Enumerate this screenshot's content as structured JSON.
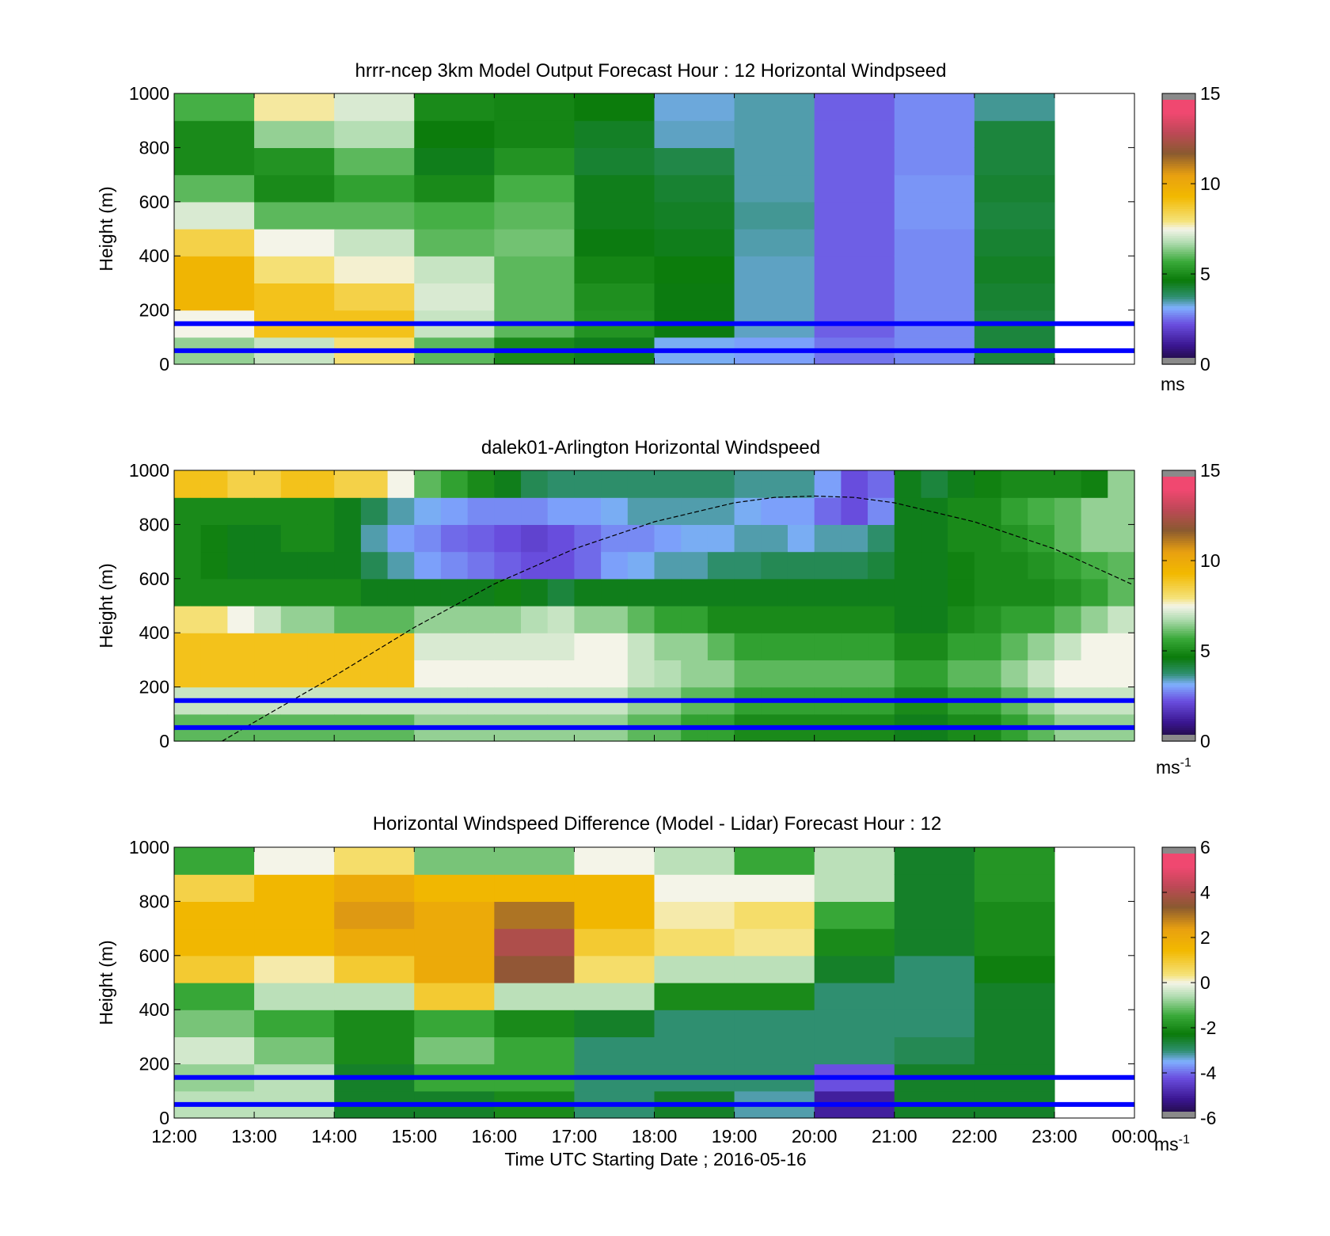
{
  "chart_data": [
    {
      "type": "heatmap",
      "title": "hrrr-ncep 3km Model Output   Forecast Hour : 12 Horizontal Windpseed",
      "xlabel": "",
      "ylabel": "Height (m)",
      "xlim": [
        "12:00",
        "00:00"
      ],
      "ylim": [
        0,
        1000
      ],
      "y_ticks": [
        "0",
        "200",
        "400",
        "600",
        "800",
        "1000"
      ],
      "x_ticks": [],
      "colorbar": {
        "range": [
          0,
          15
        ],
        "ticks": [
          "0",
          "5",
          "10",
          "15"
        ],
        "unit": "ms",
        "unit_sup": "",
        "scale": "speed"
      },
      "columns": [
        "12:00",
        "13:00",
        "14:00",
        "15:00",
        "16:00",
        "17:00",
        "18:00",
        "19:00",
        "20:00",
        "21:00",
        "22:00"
      ],
      "values_at_heights_m": [
        50,
        150,
        250,
        350,
        450,
        550,
        650,
        750,
        850,
        950
      ],
      "values": [
        [
          6.5,
          7.5,
          9.5,
          9.5,
          8.5,
          7.2,
          6,
          5,
          5,
          5.8
        ],
        [
          7,
          9,
          9,
          8,
          7.5,
          6,
          5,
          5.2,
          6.5,
          7.8
        ],
        [
          8,
          9,
          8.5,
          7.6,
          7,
          6,
          5.5,
          6,
          6.8,
          7.2
        ],
        [
          6,
          7,
          7.2,
          7,
          6,
          5.8,
          5,
          4.5,
          4.7,
          5
        ],
        [
          5,
          6,
          6,
          6,
          6.2,
          6,
          5.8,
          5.2,
          4.9,
          4.9
        ],
        [
          4.5,
          5.2,
          5.1,
          4.9,
          4.6,
          4.5,
          4.5,
          4.3,
          4.4,
          4.7
        ],
        [
          3.2,
          4.6,
          4.6,
          4.7,
          4.5,
          4.4,
          4.3,
          4.1,
          3.4,
          3.3
        ],
        [
          3,
          3.4,
          3.4,
          3.4,
          3.5,
          3.6,
          3.5,
          3.5,
          3.5,
          3.5
        ],
        [
          2.6,
          2.4,
          2.4,
          2.4,
          2.4,
          2.4,
          2.4,
          2.4,
          2.4,
          2.4
        ],
        [
          2.8,
          2.8,
          2.8,
          2.8,
          2.8,
          2.9,
          2.9,
          2.8,
          2.8,
          2.8
        ],
        [
          4.2,
          4.2,
          4.3,
          4.4,
          4.3,
          4.2,
          4.3,
          4.2,
          4.2,
          3.6
        ]
      ],
      "reference_lines_m": [
        50,
        150
      ],
      "line_color": "#0000ff"
    },
    {
      "type": "heatmap",
      "title": "dalek01-Arlington  Horizontal Windspeed",
      "xlabel": "",
      "ylabel": "Height (m)",
      "xlim": [
        "12:00",
        "00:00"
      ],
      "ylim": [
        0,
        1000
      ],
      "y_ticks": [
        "0",
        "200",
        "400",
        "600",
        "800",
        "1000"
      ],
      "x_ticks": [],
      "colorbar": {
        "range": [
          0,
          15
        ],
        "ticks": [
          "0",
          "5",
          "10",
          "15"
        ],
        "unit": "ms",
        "unit_sup": "-1",
        "scale": "speed"
      },
      "columns": [
        "12:00",
        "12:20",
        "12:40",
        "13:00",
        "13:20",
        "13:40",
        "14:00",
        "14:20",
        "14:40",
        "15:00",
        "15:20",
        "15:40",
        "16:00",
        "16:20",
        "16:40",
        "17:00",
        "17:20",
        "17:40",
        "18:00",
        "18:20",
        "18:40",
        "19:00",
        "19:20",
        "19:40",
        "20:00",
        "20:20",
        "20:40",
        "21:00",
        "21:20",
        "21:40",
        "22:00",
        "22:20",
        "22:40",
        "23:00",
        "23:20",
        "23:40"
      ],
      "values_at_heights_m": [
        50,
        150,
        250,
        350,
        450,
        550,
        650,
        750,
        850,
        950
      ],
      "values": [
        [
          6,
          7,
          9,
          9,
          8,
          5,
          5,
          5,
          5,
          9
        ],
        [
          6,
          7,
          9,
          9,
          8,
          5,
          4.8,
          4.8,
          5,
          9
        ],
        [
          6,
          7,
          9,
          9,
          7.5,
          5,
          4.5,
          4.5,
          5,
          8.5
        ],
        [
          6,
          7,
          9,
          9,
          7,
          5,
          4.5,
          4.5,
          5,
          8.5
        ],
        [
          6,
          7,
          9,
          9,
          6.5,
          5,
          4.5,
          5,
          5,
          9
        ],
        [
          6,
          7,
          9,
          9,
          6.5,
          5,
          4.5,
          5,
          5,
          9
        ],
        [
          6,
          7,
          9,
          9,
          6,
          5,
          4.5,
          4.5,
          4.5,
          8.5
        ],
        [
          6,
          7,
          9,
          9,
          6,
          4.5,
          4,
          3.5,
          4,
          8.5
        ],
        [
          6,
          7,
          9,
          9,
          6,
          4.5,
          3.5,
          3,
          3.5,
          7.5
        ],
        [
          6.5,
          7,
          7.5,
          7.2,
          6.5,
          4.5,
          3,
          2.8,
          3.2,
          6
        ],
        [
          6.5,
          7,
          7.5,
          7.2,
          6.5,
          4.5,
          2.8,
          2.5,
          3,
          5.5
        ],
        [
          6.5,
          7,
          7.5,
          7.2,
          6.5,
          4.5,
          2.6,
          2.4,
          2.8,
          5
        ],
        [
          6.5,
          7,
          7.5,
          7.2,
          6.5,
          4.8,
          2.4,
          2.2,
          2.8,
          4.5
        ],
        [
          6.5,
          7,
          7.5,
          7.2,
          6.8,
          4.5,
          2.2,
          2,
          2.8,
          4
        ],
        [
          6.5,
          7,
          7.5,
          7.2,
          7,
          4.2,
          2.2,
          2.2,
          3,
          3.8
        ],
        [
          6.5,
          7,
          7.5,
          7.5,
          6.5,
          4.5,
          2.5,
          2.5,
          3,
          3.8
        ],
        [
          6.5,
          7,
          7.5,
          7.5,
          6.5,
          4.5,
          3,
          2.8,
          3.2,
          3.8
        ],
        [
          6,
          6.5,
          7,
          7,
          6,
          4.5,
          3.2,
          2.8,
          3.5,
          3.8
        ],
        [
          6,
          6.5,
          6.8,
          6.5,
          5.5,
          4.5,
          3.5,
          3,
          3.5,
          3.8
        ],
        [
          5.5,
          6,
          6.5,
          6.5,
          5.5,
          4.5,
          3.5,
          3.2,
          3.5,
          3.8
        ],
        [
          5.5,
          6,
          6.5,
          6,
          5,
          4.5,
          3.8,
          3.2,
          3.5,
          3.8
        ],
        [
          5,
          5.5,
          6,
          5.5,
          5,
          4.5,
          3.8,
          3.5,
          3.2,
          3.6
        ],
        [
          5,
          5.5,
          6,
          5.5,
          5,
          4.5,
          4,
          3.5,
          3,
          3.6
        ],
        [
          5,
          5.5,
          6,
          5.5,
          5,
          4.5,
          4,
          3.2,
          3,
          3.6
        ],
        [
          5,
          5.5,
          6,
          5.5,
          5,
          4.5,
          4,
          3.5,
          2.5,
          3
        ],
        [
          5,
          5.5,
          6,
          5.5,
          5,
          4.5,
          4,
          3.5,
          2.2,
          2.2
        ],
        [
          5,
          5.5,
          6,
          5.5,
          5,
          4.5,
          4.2,
          3.8,
          2.8,
          2.5
        ],
        [
          4.5,
          5,
          5.5,
          5,
          4.5,
          4.5,
          4.5,
          4.5,
          4.5,
          4.5
        ],
        [
          4.5,
          5,
          5.5,
          5,
          4.5,
          4.5,
          4.5,
          4.5,
          4.5,
          4.2
        ],
        [
          5,
          5.5,
          6,
          5.5,
          5,
          4.8,
          4.8,
          5,
          5,
          4.5
        ],
        [
          5,
          5.5,
          6,
          5.5,
          5.2,
          5,
          5,
          5,
          5,
          4.8
        ],
        [
          5.5,
          6,
          6.5,
          6,
          5.5,
          5,
          5,
          5.2,
          5.5,
          5
        ],
        [
          6,
          6.5,
          7,
          6.5,
          5.5,
          5,
          5.2,
          5.5,
          5.8,
          5
        ],
        [
          6.5,
          7,
          7.5,
          7,
          6,
          5.2,
          5.5,
          6,
          6,
          5
        ],
        [
          6.5,
          7,
          7.5,
          7.5,
          6.5,
          5.5,
          5.8,
          6.5,
          6.5,
          4.8
        ],
        [
          6.5,
          7,
          7.5,
          7.5,
          7,
          6,
          6,
          6.5,
          6.5,
          6.5
        ]
      ],
      "reference_lines_m": [
        50,
        150
      ],
      "line_color": "#0000ff",
      "curve_x_hours": [
        12.6,
        13,
        14,
        15,
        16,
        17,
        18,
        19,
        19.5,
        20,
        20.5,
        21,
        22,
        23,
        24
      ],
      "curve_y_m": [
        0,
        70,
        240,
        420,
        580,
        710,
        810,
        880,
        900,
        905,
        900,
        880,
        810,
        710,
        580
      ]
    },
    {
      "type": "heatmap",
      "title": "Horizontal Windspeed Difference (Model - Lidar) Forecast Hour : 12",
      "xlabel": "Time UTC  Starting Date ; 2016-05-16",
      "ylabel": "Height (m)",
      "xlim": [
        "12:00",
        "00:00"
      ],
      "ylim": [
        0,
        1000
      ],
      "y_ticks": [
        "0",
        "200",
        "400",
        "600",
        "800",
        "1000"
      ],
      "x_ticks": [
        "12:00",
        "13:00",
        "14:00",
        "15:00",
        "16:00",
        "17:00",
        "18:00",
        "19:00",
        "20:00",
        "21:00",
        "22:00",
        "23:00",
        "00:00"
      ],
      "colorbar": {
        "range": [
          -6,
          6
        ],
        "ticks": [
          "-6",
          "-4",
          "-2",
          "0",
          "2",
          "4",
          "6"
        ],
        "unit": "ms",
        "unit_sup": "-1",
        "scale": "diff"
      },
      "columns": [
        "12:00",
        "13:00",
        "14:00",
        "15:00",
        "16:00",
        "17:00",
        "18:00",
        "19:00",
        "20:00",
        "21:00",
        "22:00"
      ],
      "values_at_heights_m": [
        50,
        150,
        250,
        350,
        450,
        550,
        650,
        750,
        850,
        950
      ],
      "values": [
        [
          -0.5,
          -0.8,
          -0.3,
          -1,
          -1.5,
          1,
          1.5,
          1.5,
          0.8,
          -1.5
        ],
        [
          -0.5,
          -0.5,
          -1,
          -1.5,
          -0.5,
          0.2,
          1.5,
          1.5,
          1.5,
          0
        ],
        [
          -2.5,
          -2.5,
          -2,
          -2,
          -0.5,
          1,
          2,
          2.5,
          2,
          0.5
        ],
        [
          -2.5,
          -1.5,
          -1,
          -1.5,
          1,
          2,
          2,
          2,
          1.5,
          -1
        ],
        [
          -2,
          -1.5,
          -1.5,
          -2,
          -0.5,
          3.5,
          4,
          3,
          1.5,
          -1
        ],
        [
          -3,
          -3,
          -3,
          -2.5,
          -0.5,
          0.5,
          1,
          1.5,
          1.5,
          0
        ],
        [
          -2.5,
          -3,
          -3,
          -3,
          -2,
          -0.5,
          0.5,
          0.2,
          0,
          -0.5
        ],
        [
          -3.2,
          -3,
          -3,
          -3,
          -2,
          -0.5,
          0.3,
          0.5,
          0,
          -1.5
        ],
        [
          -5,
          -4.2,
          -3,
          -3,
          -3,
          -2.5,
          -2,
          -1.5,
          -0.5,
          -0.5
        ],
        [
          -2.5,
          -2.5,
          -2.8,
          -3,
          -3,
          -3,
          -2.5,
          -2.5,
          -2.5,
          -2.5
        ],
        [
          -2.5,
          -2.5,
          -2.5,
          -2.5,
          -2.5,
          -2.2,
          -2,
          -2,
          -1.8,
          -1.8
        ]
      ],
      "reference_lines_m": [
        50,
        150
      ],
      "line_color": "#0000ff"
    }
  ]
}
